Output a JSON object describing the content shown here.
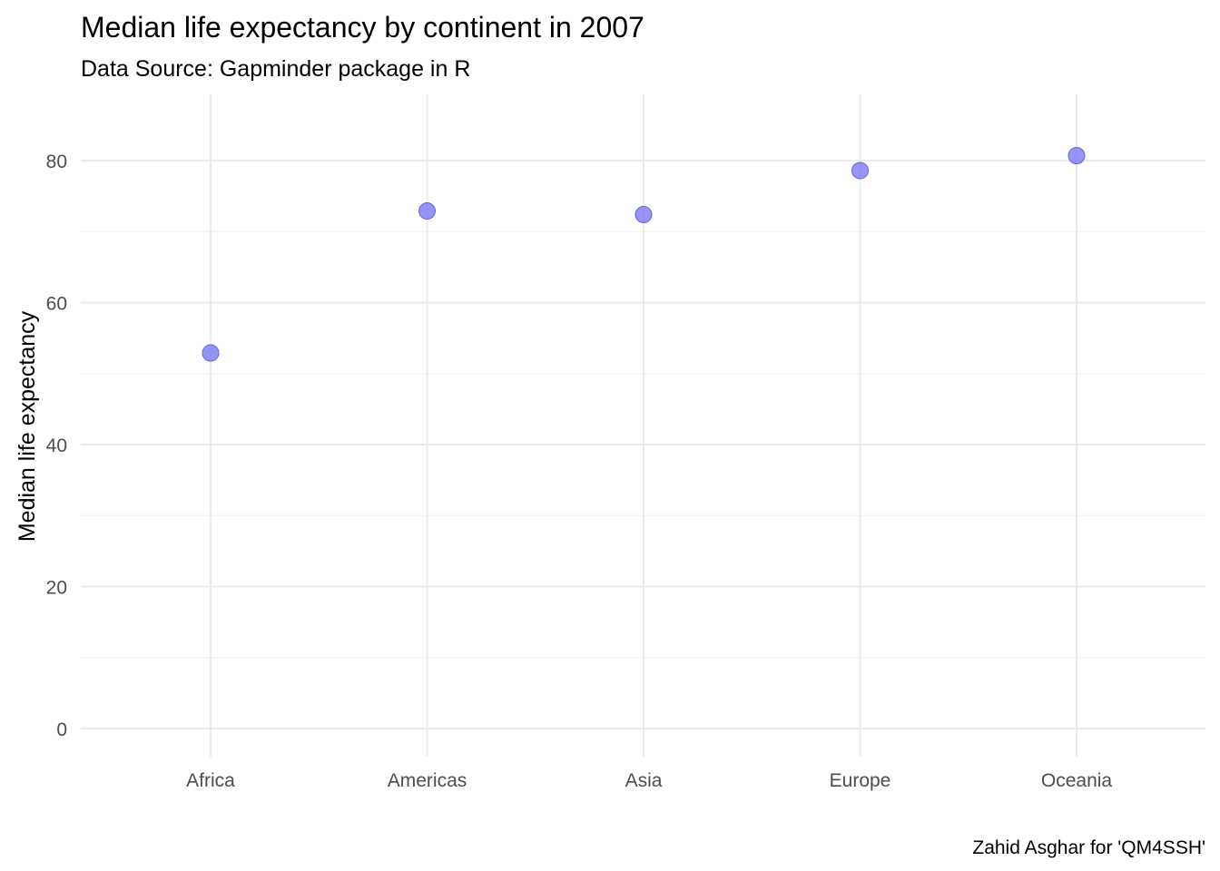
{
  "chart_data": {
    "type": "scatter",
    "title": "Median life expectancy by continent in 2007",
    "subtitle": "Data Source: Gapminder package in R",
    "caption": "Zahid Asghar for 'QM4SSH'",
    "xlabel": "",
    "ylabel": "Median life expectancy",
    "categories": [
      "Africa",
      "Americas",
      "Asia",
      "Europe",
      "Oceania"
    ],
    "values": [
      52.9,
      72.9,
      72.4,
      78.6,
      80.7
    ],
    "ylim": [
      0,
      80.7
    ],
    "yticks": [
      0,
      20,
      40,
      60,
      80
    ],
    "grid": true,
    "point_color": "#7b7bf5"
  }
}
